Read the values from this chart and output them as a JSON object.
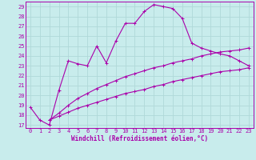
{
  "xlabel": "Windchill (Refroidissement éolien,°C)",
  "xlim": [
    -0.5,
    23.5
  ],
  "ylim": [
    16.7,
    29.5
  ],
  "yticks": [
    17,
    18,
    19,
    20,
    21,
    22,
    23,
    24,
    25,
    26,
    27,
    28,
    29
  ],
  "xticks": [
    0,
    1,
    2,
    3,
    4,
    5,
    6,
    7,
    8,
    9,
    10,
    11,
    12,
    13,
    14,
    15,
    16,
    17,
    18,
    19,
    20,
    21,
    22,
    23
  ],
  "background_color": "#c8ecec",
  "grid_color": "#b0d8d8",
  "line_color": "#aa00aa",
  "line1_x": [
    0,
    1,
    2,
    3,
    4,
    5,
    6,
    7,
    8,
    9,
    10,
    11,
    12,
    13,
    14,
    15,
    16,
    17,
    18,
    19,
    20,
    21,
    22,
    23
  ],
  "line1_y": [
    18.8,
    17.5,
    17.0,
    20.5,
    23.5,
    23.2,
    23.0,
    25.0,
    23.3,
    25.5,
    27.3,
    27.3,
    28.5,
    29.2,
    29.0,
    28.8,
    27.8,
    25.3,
    24.8,
    24.5,
    24.2,
    24.0,
    23.5,
    23.0
  ],
  "line2_x": [
    2,
    3,
    4,
    5,
    6,
    7,
    8,
    9,
    10,
    11,
    12,
    13,
    14,
    15,
    16,
    17,
    18,
    19,
    20,
    21,
    22,
    23
  ],
  "line2_y": [
    17.5,
    18.2,
    19.0,
    19.7,
    20.2,
    20.7,
    21.1,
    21.5,
    21.9,
    22.2,
    22.5,
    22.8,
    23.0,
    23.3,
    23.5,
    23.7,
    24.0,
    24.2,
    24.4,
    24.5,
    24.6,
    24.8
  ],
  "line3_x": [
    2,
    3,
    4,
    5,
    6,
    7,
    8,
    9,
    10,
    11,
    12,
    13,
    14,
    15,
    16,
    17,
    18,
    19,
    20,
    21,
    22,
    23
  ],
  "line3_y": [
    17.5,
    17.9,
    18.3,
    18.7,
    19.0,
    19.3,
    19.6,
    19.9,
    20.2,
    20.4,
    20.6,
    20.9,
    21.1,
    21.4,
    21.6,
    21.8,
    22.0,
    22.2,
    22.4,
    22.5,
    22.6,
    22.8
  ]
}
